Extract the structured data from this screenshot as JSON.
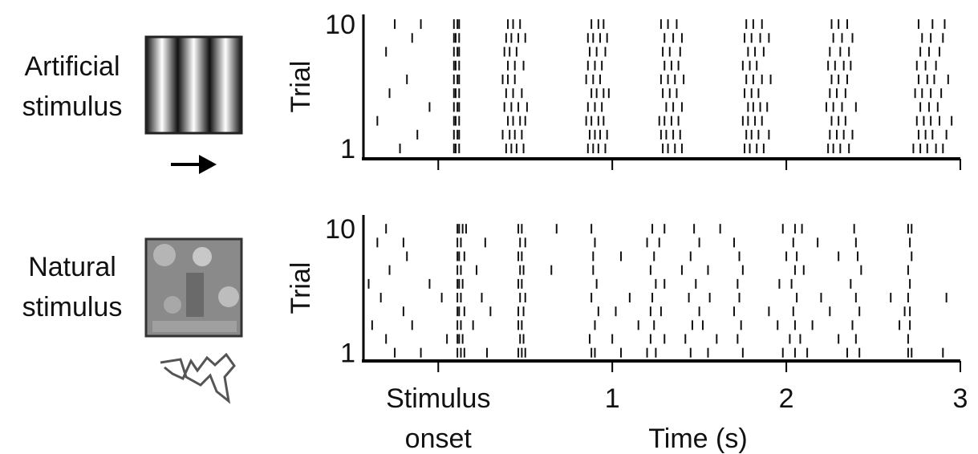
{
  "chart_data": [
    {
      "type": "raster",
      "label": "Artificial stimulus",
      "ylabel": "Trial",
      "color": "#111111",
      "xlim": [
        -0.43,
        3
      ],
      "xticks": [
        {
          "value": 0,
          "label": "Stimulus onset"
        },
        1,
        2,
        3
      ],
      "ylim": [
        0.25,
        10.7
      ],
      "yticks": [
        1,
        10
      ],
      "trials": [
        [
          -0.22,
          0.09,
          0.1,
          0.12,
          0.39,
          0.42,
          0.45,
          0.49,
          0.86,
          0.89,
          0.92,
          0.96,
          1.29,
          1.32,
          1.36,
          1.4,
          1.76,
          1.79,
          1.83,
          1.87,
          2.24,
          2.27,
          2.31,
          2.36,
          2.73,
          2.77,
          2.81,
          2.86,
          2.9
        ],
        [
          -0.12,
          0.09,
          0.11,
          0.12,
          0.37,
          0.41,
          0.44,
          0.48,
          0.87,
          0.9,
          0.93,
          0.97,
          1.28,
          1.31,
          1.35,
          1.39,
          1.77,
          1.8,
          1.84,
          1.9,
          2.25,
          2.29,
          2.33,
          2.38,
          2.76,
          2.8,
          2.84,
          2.92
        ],
        [
          -0.35,
          0.09,
          0.1,
          0.12,
          0.4,
          0.43,
          0.47,
          0.5,
          0.85,
          0.88,
          0.92,
          0.95,
          1.27,
          1.3,
          1.34,
          1.38,
          1.75,
          1.78,
          1.82,
          1.86,
          2.26,
          2.3,
          2.34,
          2.75,
          2.79,
          2.83,
          2.88,
          2.95
        ],
        [
          -0.05,
          0.09,
          0.11,
          0.12,
          0.38,
          0.42,
          0.46,
          0.51,
          0.86,
          0.9,
          0.94,
          1.31,
          1.35,
          1.4,
          1.78,
          1.81,
          1.85,
          1.89,
          2.23,
          2.27,
          2.32,
          2.4,
          2.77,
          2.82,
          2.87
        ],
        [
          -0.28,
          0.09,
          0.1,
          0.12,
          0.39,
          0.43,
          0.48,
          0.88,
          0.91,
          0.95,
          0.98,
          1.29,
          1.33,
          1.37,
          1.76,
          1.8,
          1.84,
          2.25,
          2.29,
          2.34,
          2.74,
          2.78,
          2.83,
          2.89
        ],
        [
          -0.18,
          0.09,
          0.11,
          0.12,
          0.37,
          0.4,
          0.44,
          0.85,
          0.89,
          0.93,
          1.28,
          1.32,
          1.36,
          1.41,
          1.77,
          1.81,
          1.86,
          1.91,
          2.26,
          2.3,
          2.35,
          2.76,
          2.81,
          2.85,
          2.93
        ],
        [
          0.09,
          0.1,
          0.12,
          0.4,
          0.44,
          0.49,
          0.86,
          0.9,
          0.94,
          1.3,
          1.34,
          1.38,
          1.75,
          1.79,
          1.83,
          2.24,
          2.28,
          2.33,
          2.37,
          2.75,
          2.8,
          2.86
        ],
        [
          -0.3,
          0.09,
          0.11,
          0.12,
          0.38,
          0.41,
          0.45,
          0.87,
          0.91,
          0.96,
          1.29,
          1.33,
          1.39,
          1.78,
          1.82,
          1.87,
          2.25,
          2.31,
          2.36,
          2.77,
          2.82,
          2.88
        ],
        [
          -0.15,
          0.09,
          0.1,
          0.12,
          0.39,
          0.42,
          0.46,
          0.5,
          0.86,
          0.89,
          0.93,
          0.97,
          1.3,
          1.35,
          1.4,
          1.76,
          1.8,
          1.85,
          1.9,
          2.27,
          2.32,
          2.38,
          2.78,
          2.83,
          2.9
        ],
        [
          -0.25,
          -0.1,
          0.09,
          0.11,
          0.12,
          0.4,
          0.43,
          0.47,
          0.88,
          0.92,
          0.95,
          1.28,
          1.32,
          1.37,
          1.77,
          1.81,
          1.86,
          2.26,
          2.3,
          2.35,
          2.76,
          2.84,
          2.91
        ]
      ]
    },
    {
      "type": "raster",
      "label": "Natural stimulus",
      "ylabel": "Trial",
      "xlabel": "Time (s)",
      "color": "#111111",
      "xlim": [
        -0.43,
        3
      ],
      "xticks": [
        {
          "value": 0,
          "label": "Stimulus onset"
        },
        1,
        2,
        3
      ],
      "ylim": [
        0.4,
        11
      ],
      "yticks": [
        1,
        10
      ],
      "trials": [
        [
          -0.25,
          -0.1,
          0.11,
          0.13,
          0.15,
          0.28,
          0.46,
          0.48,
          0.5,
          0.88,
          0.9,
          1.05,
          1.2,
          1.25,
          1.45,
          1.55,
          1.75,
          1.98,
          2.05,
          2.12,
          2.35,
          2.42,
          2.7,
          2.72,
          2.9
        ],
        [
          -0.3,
          0.05,
          0.11,
          0.12,
          0.14,
          0.47,
          0.49,
          0.87,
          1.0,
          1.22,
          1.3,
          1.42,
          1.6,
          1.72,
          2.02,
          2.08,
          2.3,
          2.4,
          2.7
        ],
        [
          -0.38,
          -0.15,
          0.11,
          0.13,
          0.2,
          0.46,
          0.48,
          0.9,
          1.15,
          1.24,
          1.46,
          1.52,
          1.74,
          1.95,
          2.05,
          2.15,
          2.38,
          2.65,
          2.71
        ],
        [
          -0.2,
          0.11,
          0.12,
          0.15,
          0.3,
          0.46,
          0.49,
          0.92,
          1.02,
          1.22,
          1.28,
          1.5,
          1.7,
          1.9,
          2.04,
          2.25,
          2.42,
          2.68,
          2.71
        ],
        [
          -0.33,
          0.02,
          0.11,
          0.13,
          0.25,
          0.47,
          0.5,
          0.88,
          1.1,
          1.23,
          1.44,
          1.56,
          1.73,
          2.06,
          2.2,
          2.4,
          2.6,
          2.7,
          2.92
        ],
        [
          -0.4,
          -0.05,
          0.11,
          0.12,
          0.14,
          0.46,
          0.48,
          0.91,
          1.25,
          1.3,
          1.48,
          1.72,
          1.96,
          2.03,
          2.37,
          2.71
        ],
        [
          -0.28,
          0.11,
          0.13,
          0.22,
          0.47,
          0.49,
          0.65,
          0.89,
          1.22,
          1.4,
          1.55,
          1.75,
          2.05,
          2.1,
          2.43,
          2.7
        ],
        [
          -0.18,
          0.11,
          0.12,
          0.15,
          0.46,
          0.48,
          0.89,
          1.05,
          1.24,
          1.45,
          1.73,
          2.0,
          2.06,
          2.3,
          2.41,
          2.72
        ],
        [
          -0.35,
          -0.2,
          0.11,
          0.13,
          0.27,
          0.47,
          0.5,
          0.9,
          1.2,
          1.27,
          1.5,
          1.7,
          2.04,
          2.18,
          2.4,
          2.71
        ],
        [
          -0.3,
          0.11,
          0.12,
          0.14,
          0.16,
          0.46,
          0.48,
          0.68,
          0.88,
          1.23,
          1.3,
          1.47,
          1.62,
          1.98,
          2.05,
          2.09,
          2.39,
          2.7,
          2.72
        ]
      ]
    }
  ]
}
